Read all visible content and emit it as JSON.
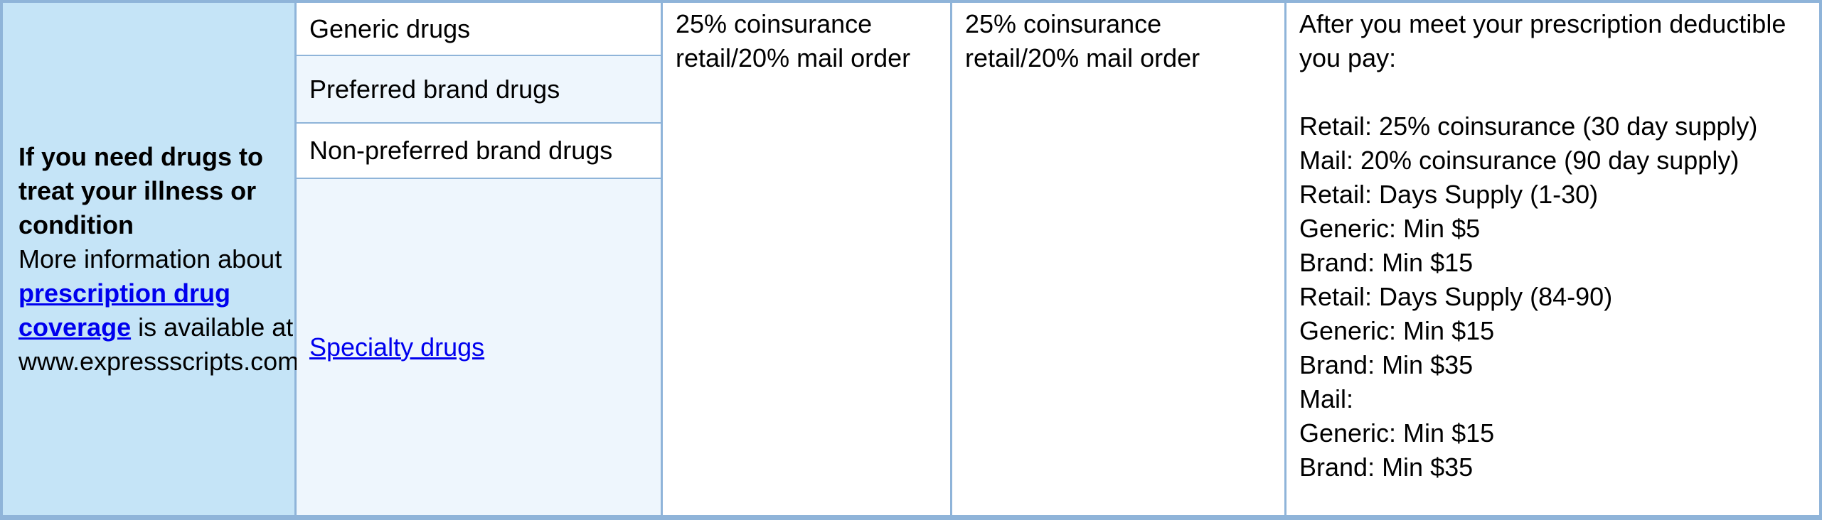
{
  "row_header": {
    "heading": "If you need drugs to treat your illness or condition",
    "text_before_link": "More information about",
    "link_text": "prescription drug coverage",
    "text_after_link": "is available at www.expressscripts.com"
  },
  "drug_types": [
    "Generic drugs",
    "Preferred brand drugs",
    "Non-preferred brand drugs",
    "Specialty drugs"
  ],
  "network_cost": "25% coinsurance retail/20% mail order",
  "out_of_network_cost": "25% coinsurance retail/20% mail order",
  "limitations": {
    "intro": "After you meet your prescription deductible you pay:",
    "lines": [
      "Retail: 25% coinsurance (30 day supply)",
      "Mail: 20% coinsurance (90 day supply)",
      "Retail: Days Supply (1-30)",
      "Generic: Min $5",
      "Brand: Min $15",
      "Retail: Days Supply (84-90)",
      "Generic: Min $15",
      "Brand: Min $35",
      "Mail:",
      "Generic: Min $15",
      "Brand: Min $35"
    ]
  }
}
